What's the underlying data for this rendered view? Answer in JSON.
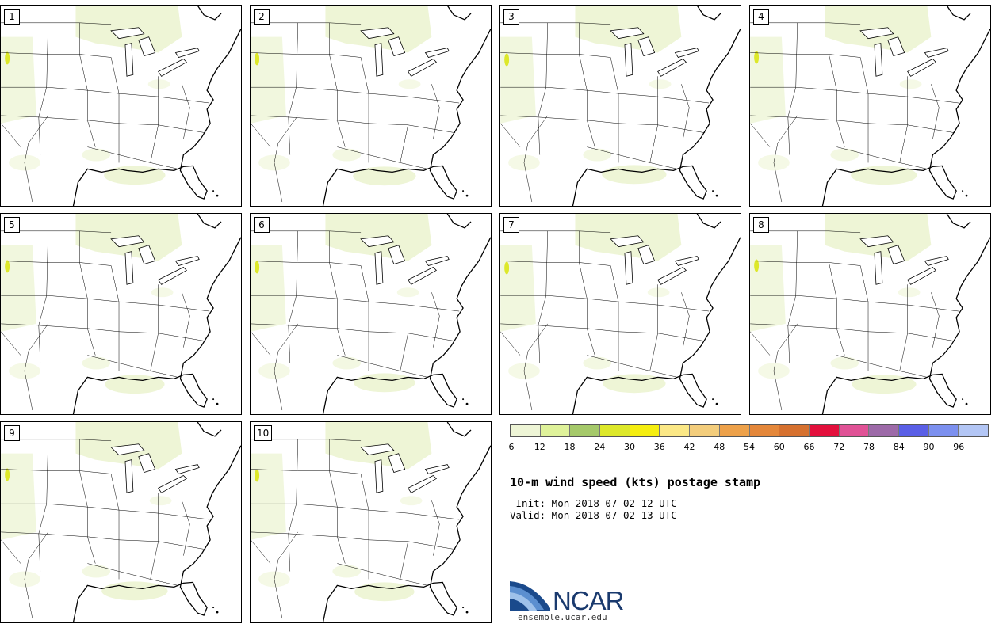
{
  "members": [
    "1",
    "2",
    "3",
    "4",
    "5",
    "6",
    "7",
    "8",
    "9",
    "10"
  ],
  "colorbar": {
    "colors": [
      "#eef5d6",
      "#dff29a",
      "#a5c96a",
      "#dde82a",
      "#f5ee10",
      "#fbe886",
      "#f3cd7c",
      "#eda14a",
      "#e4873a",
      "#d6712f",
      "#e3103c",
      "#e05296",
      "#9d6aa8",
      "#5a5fe6",
      "#7c90ef",
      "#b3c6f5"
    ],
    "ticks": [
      "6",
      "12",
      "18",
      "24",
      "30",
      "36",
      "42",
      "48",
      "54",
      "60",
      "66",
      "72",
      "78",
      "84",
      "90",
      "96"
    ]
  },
  "title": "10-m wind speed (kts) postage stamp",
  "init": " Init: Mon 2018-07-02 12 UTC",
  "valid": "Valid: Mon 2018-07-02 13 UTC",
  "logo": {
    "text": "NCAR",
    "url": "ensemble.ucar.edu"
  }
}
